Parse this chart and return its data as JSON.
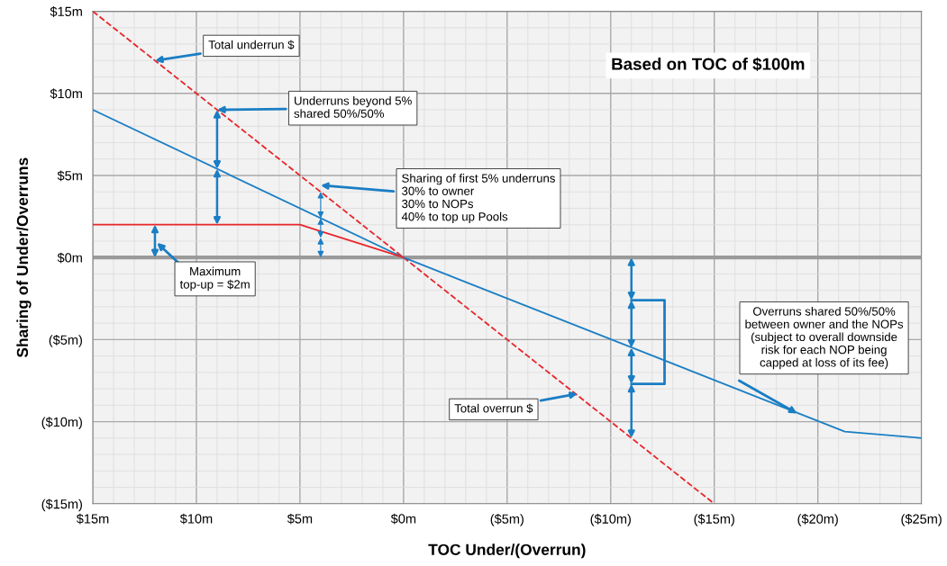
{
  "chart_data": {
    "type": "line",
    "title": "Based on TOC of $100m",
    "xlabel": "TOC Under/(Overrun)",
    "ylabel": "Sharing of Under/Overruns",
    "series": [
      {
        "color": "#e8262b",
        "line_style": "dashed",
        "x": [
          15,
          -15
        ],
        "values": [
          15,
          -15
        ]
      },
      {
        "color": "#1a7ec4",
        "line_style": "solid",
        "x": [
          15,
          0,
          -21.3,
          -25
        ],
        "values": [
          9,
          0,
          -10.6,
          -11
        ]
      },
      {
        "color": "#e8262b",
        "line_style": "solid",
        "x": [
          15,
          5,
          0
        ],
        "values": [
          2,
          2,
          0
        ]
      }
    ],
    "xlim": [
      15,
      -25
    ],
    "ylim": [
      -15,
      15
    ],
    "xticks": [
      {
        "value": 15,
        "label": "$15m"
      },
      {
        "value": 10,
        "label": "$10m"
      },
      {
        "value": 5,
        "label": "$5m"
      },
      {
        "value": 0,
        "label": "$0m"
      },
      {
        "value": -5,
        "label": "($5m)"
      },
      {
        "value": -10,
        "label": "($10m)"
      },
      {
        "value": -15,
        "label": "($15m)"
      },
      {
        "value": -20,
        "label": "($20m)"
      },
      {
        "value": -25,
        "label": "($25m)"
      }
    ],
    "yticks": [
      {
        "value": -15,
        "label": "($15m)"
      },
      {
        "value": -10,
        "label": "($10m)"
      },
      {
        "value": -5,
        "label": "($5m)"
      },
      {
        "value": 0,
        "label": "$0m"
      },
      {
        "value": 5,
        "label": "$5m"
      },
      {
        "value": 10,
        "label": "$10m"
      },
      {
        "value": 15,
        "label": "$15m"
      }
    ],
    "grid": true,
    "ref_lines": [
      {
        "axis": "y",
        "value": 0,
        "color": "#9a9a9a"
      }
    ],
    "annotations": [
      {
        "text": "Total underrun $",
        "x": 12,
        "y": 12
      },
      {
        "text": "Underruns beyond 5%\nshared 50%/50%",
        "x": 9,
        "y": 9
      },
      {
        "text": "Sharing of first 5% underruns\n30% to owner\n30% to NOPs\n40% to top up Pools",
        "x": 4,
        "y": 4.4
      },
      "Maximum\ntop-up = $2m",
      "Overruns shared 50%/50%\nbetween owner and the NOPs\n(subject to overall downside\nrisk for each NOP being\ncapped at loss of its fee)",
      {
        "text": "Total overrun $",
        "x": -8.4,
        "y": -8.3
      }
    ]
  }
}
